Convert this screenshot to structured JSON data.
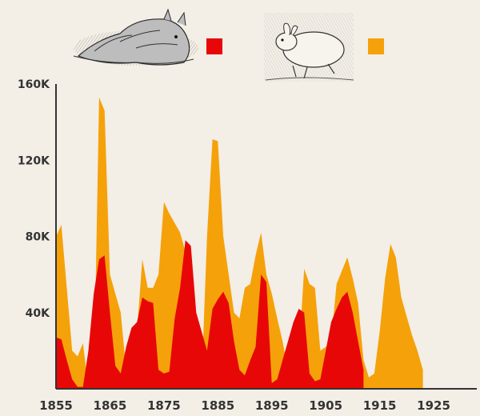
{
  "chart_data": {
    "type": "area",
    "title": "",
    "xlabel": "",
    "ylabel": "",
    "xlim": [
      1855,
      1933
    ],
    "ylim": [
      0,
      160000
    ],
    "grid": false,
    "legend_placement": "top",
    "xticks": [
      1855,
      1865,
      1875,
      1885,
      1895,
      1905,
      1915,
      1925
    ],
    "xtick_labels": [
      "1855",
      "1865",
      "1875",
      "1885",
      "1895",
      "1905",
      "1915",
      "1925"
    ],
    "yticks": [
      40000,
      80000,
      120000,
      160000
    ],
    "ytick_labels": [
      "40K",
      "80K",
      "120K",
      "160K"
    ],
    "series": [
      {
        "legend_icon": "hare-engraving",
        "color": "#f5a10a",
        "points": [
          [
            1855,
            80000
          ],
          [
            1856,
            86000
          ],
          [
            1858,
            20000
          ],
          [
            1859,
            17000
          ],
          [
            1860,
            24000
          ],
          [
            1861,
            0
          ],
          [
            1862,
            0
          ],
          [
            1863,
            153000
          ],
          [
            1864,
            146000
          ],
          [
            1865,
            60000
          ],
          [
            1867,
            40000
          ],
          [
            1868,
            10000
          ],
          [
            1869,
            5000
          ],
          [
            1870,
            30000
          ],
          [
            1871,
            68000
          ],
          [
            1872,
            53000
          ],
          [
            1873,
            53000
          ],
          [
            1874,
            60000
          ],
          [
            1875,
            98000
          ],
          [
            1876,
            92000
          ],
          [
            1878,
            82000
          ],
          [
            1879,
            72000
          ],
          [
            1880,
            10000
          ],
          [
            1881,
            8000
          ],
          [
            1882,
            5000
          ],
          [
            1883,
            80000
          ],
          [
            1884,
            131000
          ],
          [
            1885,
            130000
          ],
          [
            1886,
            80000
          ],
          [
            1888,
            40000
          ],
          [
            1889,
            37000
          ],
          [
            1890,
            53000
          ],
          [
            1891,
            55000
          ],
          [
            1892,
            70000
          ],
          [
            1893,
            82000
          ],
          [
            1894,
            60000
          ],
          [
            1895,
            50000
          ],
          [
            1896,
            37000
          ],
          [
            1897,
            25000
          ],
          [
            1898,
            10000
          ],
          [
            1899,
            8000
          ],
          [
            1900,
            17000
          ],
          [
            1901,
            63000
          ],
          [
            1902,
            55000
          ],
          [
            1903,
            53000
          ],
          [
            1904,
            20000
          ],
          [
            1905,
            22000
          ],
          [
            1906,
            25000
          ],
          [
            1907,
            55000
          ],
          [
            1908,
            62000
          ],
          [
            1909,
            69000
          ],
          [
            1910,
            58000
          ],
          [
            1911,
            45000
          ],
          [
            1912,
            15000
          ],
          [
            1913,
            6000
          ],
          [
            1914,
            8000
          ],
          [
            1915,
            30000
          ],
          [
            1916,
            58000
          ],
          [
            1917,
            76000
          ],
          [
            1918,
            69000
          ],
          [
            1919,
            48000
          ],
          [
            1920,
            38000
          ],
          [
            1921,
            28000
          ],
          [
            1922,
            20000
          ],
          [
            1923,
            10000
          ]
        ]
      },
      {
        "legend_icon": "lynx-engraving",
        "color": "#e80707",
        "points": [
          [
            1855,
            27000
          ],
          [
            1856,
            26000
          ],
          [
            1857,
            15000
          ],
          [
            1858,
            5000
          ],
          [
            1859,
            1000
          ],
          [
            1860,
            1000
          ],
          [
            1861,
            20000
          ],
          [
            1862,
            50000
          ],
          [
            1863,
            68000
          ],
          [
            1864,
            70000
          ],
          [
            1865,
            40000
          ],
          [
            1866,
            12000
          ],
          [
            1867,
            8000
          ],
          [
            1868,
            22000
          ],
          [
            1869,
            32000
          ],
          [
            1870,
            35000
          ],
          [
            1871,
            48000
          ],
          [
            1872,
            46000
          ],
          [
            1873,
            45000
          ],
          [
            1874,
            10000
          ],
          [
            1875,
            8000
          ],
          [
            1876,
            9000
          ],
          [
            1877,
            37000
          ],
          [
            1878,
            53000
          ],
          [
            1879,
            78000
          ],
          [
            1880,
            75000
          ],
          [
            1881,
            40000
          ],
          [
            1882,
            30000
          ],
          [
            1883,
            20000
          ],
          [
            1884,
            42000
          ],
          [
            1885,
            47000
          ],
          [
            1886,
            51000
          ],
          [
            1887,
            45000
          ],
          [
            1888,
            25000
          ],
          [
            1889,
            10000
          ],
          [
            1890,
            7000
          ],
          [
            1891,
            15000
          ],
          [
            1892,
            22000
          ],
          [
            1893,
            60000
          ],
          [
            1894,
            56000
          ],
          [
            1895,
            3000
          ],
          [
            1896,
            5000
          ],
          [
            1897,
            15000
          ],
          [
            1898,
            25000
          ],
          [
            1899,
            35000
          ],
          [
            1900,
            42000
          ],
          [
            1901,
            40000
          ],
          [
            1902,
            8000
          ],
          [
            1903,
            4000
          ],
          [
            1904,
            5000
          ],
          [
            1905,
            20000
          ],
          [
            1906,
            35000
          ],
          [
            1907,
            42000
          ],
          [
            1908,
            48000
          ],
          [
            1909,
            51000
          ],
          [
            1910,
            40000
          ],
          [
            1911,
            25000
          ],
          [
            1912,
            10000
          ]
        ]
      }
    ]
  },
  "legend": [
    {
      "icon": "lynx-engraving",
      "swatch_color": "#e80707"
    },
    {
      "icon": "hare-engraving",
      "swatch_color": "#f5a10a"
    }
  ]
}
